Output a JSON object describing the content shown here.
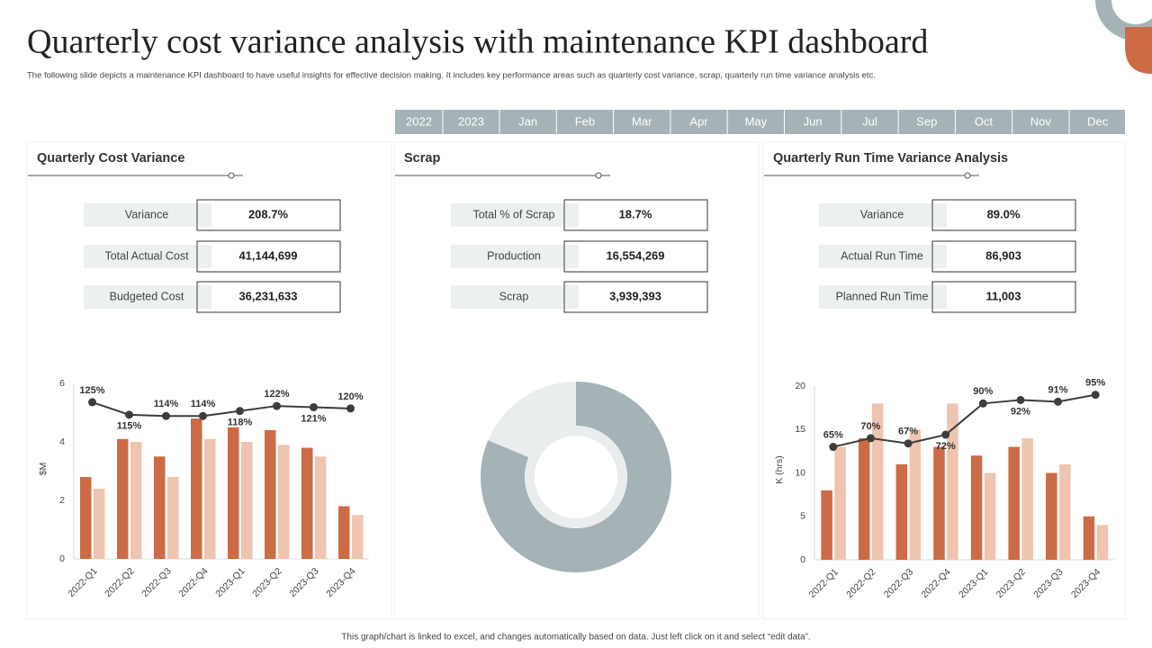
{
  "header": {
    "title": "Quarterly cost variance analysis with maintenance KPI dashboard",
    "subtitle": "The following slide depicts a maintenance KPI dashboard to have useful insights for effective decision making. It includes key performance areas such as quarterly cost variance, scrap, quarterly run time variance analysis etc."
  },
  "filters": [
    "2022",
    "2023",
    "Jan",
    "Feb",
    "Mar",
    "Apr",
    "May",
    "Jun",
    "Jul",
    "Sep",
    "Oct",
    "Nov",
    "Dec"
  ],
  "panels": [
    {
      "title": "Quarterly Cost Variance",
      "kpis": [
        {
          "label": "Variance",
          "value": "208.7%"
        },
        {
          "label": "Total Actual Cost",
          "value": "41,144,699"
        },
        {
          "label": "Budgeted Cost",
          "value": "36,231,633"
        }
      ]
    },
    {
      "title": "Scrap",
      "kpis": [
        {
          "label": "Total % of Scrap",
          "value": "18.7%"
        },
        {
          "label": "Production",
          "value": "16,554,269"
        },
        {
          "label": "Scrap",
          "value": "3,939,393"
        }
      ]
    },
    {
      "title": "Quarterly Run Time Variance Analysis",
      "kpis": [
        {
          "label": "Variance",
          "value": "89.0%"
        },
        {
          "label": "Actual Run Time",
          "value": "86,903"
        },
        {
          "label": "Planned Run Time",
          "value": "11,003"
        }
      ]
    }
  ],
  "chart_data": [
    {
      "type": "bar",
      "y_label": "$M",
      "categories": [
        "2022-Q1",
        "2022-Q2",
        "2022-Q3",
        "2022-Q4",
        "2023-Q1",
        "2023-Q2",
        "2023-Q3",
        "2023-Q4"
      ],
      "series": [
        {
          "color": "#cc6b45",
          "values": [
            2.8,
            4.1,
            3.5,
            4.8,
            4.5,
            4.4,
            3.8,
            1.8
          ]
        },
        {
          "color": "#efc4b0",
          "values": [
            2.4,
            4.0,
            2.8,
            4.1,
            4.0,
            3.9,
            3.5,
            1.5
          ]
        },
        {
          "type": "line",
          "axis": "y2",
          "color": "#3d3d3d",
          "values": [
            125,
            115,
            114,
            114,
            118,
            122,
            121,
            120
          ],
          "value_labels": [
            "125%",
            "115%",
            "114%",
            "114%",
            "118%",
            "122%",
            "121%",
            "120%"
          ]
        }
      ],
      "ylim": [
        0,
        6
      ],
      "yticks": [
        0,
        2,
        4,
        6
      ],
      "y2lim": [
        0,
        140
      ],
      "grid": false
    },
    {
      "type": "donut",
      "series": [
        {
          "color": "#a5b3b6",
          "value": 81.3
        },
        {
          "color": "#e9edee",
          "value": 18.7
        }
      ]
    },
    {
      "type": "bar",
      "y_label": "K (hrs)",
      "categories": [
        "2022-Q1",
        "2022-Q2",
        "2022-Q3",
        "2022-Q4",
        "2023-Q1",
        "2023-Q2",
        "2023-Q3",
        "2023-Q4"
      ],
      "series": [
        {
          "color": "#cc6b45",
          "values": [
            8,
            14,
            11,
            13,
            12,
            13,
            10,
            5
          ]
        },
        {
          "color": "#efc4b0",
          "values": [
            13,
            18,
            15,
            18,
            10,
            14,
            11,
            4
          ]
        },
        {
          "type": "line",
          "axis": "y2",
          "color": "#3d3d3d",
          "values": [
            65,
            70,
            67,
            72,
            90,
            92,
            91,
            95
          ],
          "value_labels": [
            "65%",
            "70%",
            "67%",
            "72%",
            "90%",
            "92%",
            "91%",
            "95%"
          ]
        }
      ],
      "ylim": [
        0,
        20
      ],
      "yticks": [
        0,
        5,
        10,
        15,
        20
      ],
      "y2lim": [
        0,
        100
      ],
      "grid": false
    }
  ],
  "footer": "This graph/chart is linked to excel, and changes automatically based on data. Just left click on it and select “edit data”."
}
